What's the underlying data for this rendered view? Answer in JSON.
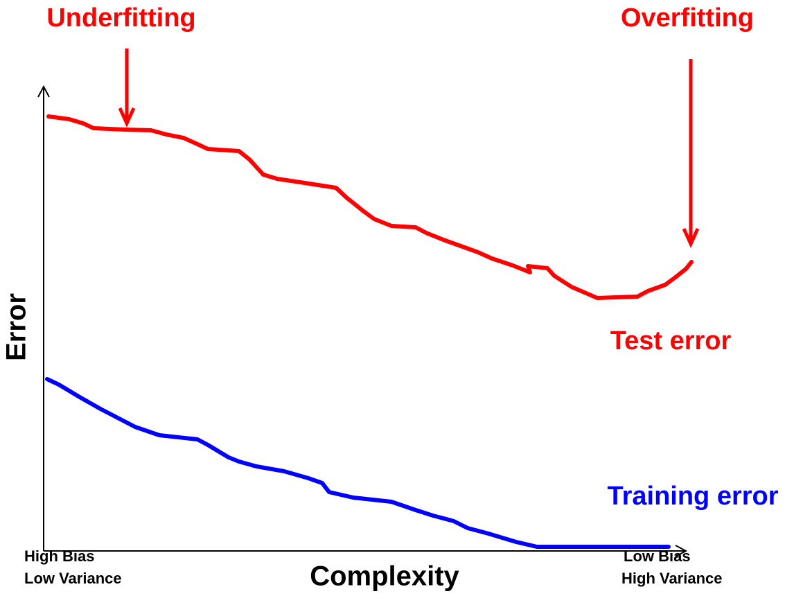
{
  "labels": {
    "underfitting": "Underfitting",
    "overfitting": "Overfitting",
    "y_axis": "Error",
    "x_axis": "Complexity",
    "left_bottom": [
      "High Bias",
      "Low Variance"
    ],
    "right_bottom": [
      "Low Bias",
      "High Variance"
    ],
    "test_curve": "Test error",
    "training_curve": "Training error"
  }
}
